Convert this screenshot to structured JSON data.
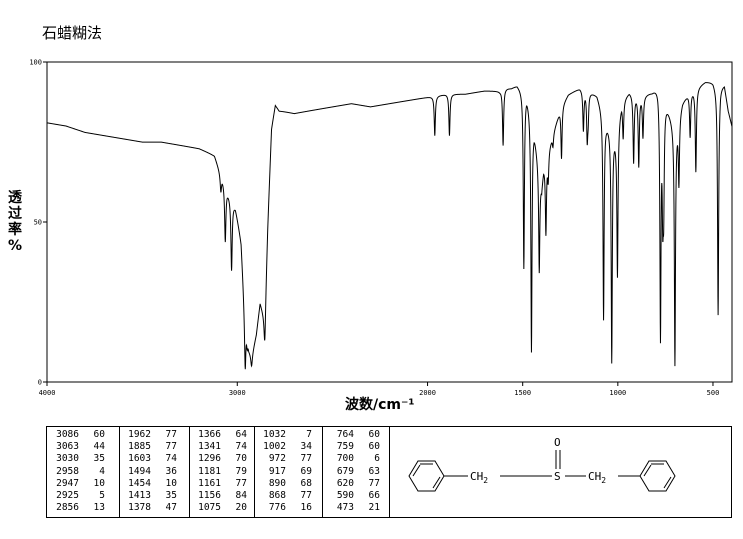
{
  "header": {
    "method": "石蜡糊法"
  },
  "chart_data": {
    "type": "line",
    "title": "",
    "xlabel": "波数/cm⁻¹",
    "ylabel": [
      "透",
      "过",
      "率",
      "%"
    ],
    "xlim": [
      4000,
      400
    ],
    "ylim": [
      0,
      100
    ],
    "x_ticks": [
      {
        "value": 4000,
        "label": "4000"
      },
      {
        "value": 3000,
        "label": "3000"
      },
      {
        "value": 2000,
        "label": "2000"
      },
      {
        "value": 1500,
        "label": "1500"
      },
      {
        "value": 1000,
        "label": "1000"
      },
      {
        "value": 500,
        "label": "500"
      }
    ],
    "y_ticks": [
      {
        "value": 0,
        "label": "0"
      },
      {
        "value": 50,
        "label": "50"
      },
      {
        "value": 100,
        "label": "100"
      }
    ],
    "grid": false,
    "baseline": [
      [
        4000,
        81
      ],
      [
        3900,
        80
      ],
      [
        3800,
        78
      ],
      [
        3700,
        77
      ],
      [
        3600,
        76
      ],
      [
        3500,
        75
      ],
      [
        3400,
        75
      ],
      [
        3300,
        74
      ],
      [
        3200,
        73
      ],
      [
        3120,
        71
      ],
      [
        3090,
        66
      ],
      [
        3050,
        60
      ],
      [
        3010,
        55
      ],
      [
        2980,
        45
      ],
      [
        2958,
        20
      ],
      [
        2940,
        10
      ],
      [
        2925,
        8
      ],
      [
        2900,
        15
      ],
      [
        2880,
        25
      ],
      [
        2856,
        20
      ],
      [
        2840,
        50
      ],
      [
        2820,
        80
      ],
      [
        2800,
        87
      ],
      [
        2780,
        85
      ],
      [
        2700,
        84
      ],
      [
        2600,
        85
      ],
      [
        2500,
        86
      ],
      [
        2400,
        87
      ],
      [
        2300,
        86
      ],
      [
        2200,
        87
      ],
      [
        2100,
        88
      ],
      [
        2000,
        89
      ],
      [
        1900,
        90
      ],
      [
        1800,
        90
      ],
      [
        1700,
        91
      ],
      [
        1620,
        91
      ],
      [
        1600,
        92
      ],
      [
        1560,
        92
      ],
      [
        1530,
        93
      ],
      [
        1510,
        92
      ],
      [
        1480,
        91
      ],
      [
        1440,
        80
      ],
      [
        1420,
        70
      ],
      [
        1400,
        62
      ],
      [
        1390,
        68
      ],
      [
        1370,
        72
      ],
      [
        1350,
        76
      ],
      [
        1300,
        86
      ],
      [
        1260,
        90
      ],
      [
        1200,
        92
      ],
      [
        1150,
        91
      ],
      [
        1110,
        90
      ],
      [
        1060,
        82
      ],
      [
        1010,
        78
      ],
      [
        980,
        88
      ],
      [
        940,
        91
      ],
      [
        900,
        90
      ],
      [
        860,
        90
      ],
      [
        820,
        91
      ],
      [
        790,
        93
      ],
      [
        760,
        90
      ],
      [
        700,
        80
      ],
      [
        660,
        88
      ],
      [
        620,
        91
      ],
      [
        590,
        92
      ],
      [
        540,
        94
      ],
      [
        500,
        94
      ],
      [
        480,
        92
      ],
      [
        473,
        88
      ],
      [
        460,
        93
      ],
      [
        440,
        93
      ],
      [
        420,
        85
      ],
      [
        400,
        80
      ]
    ],
    "peaks": [
      {
        "wavenumber": 3086,
        "transmittance": 60
      },
      {
        "wavenumber": 3063,
        "transmittance": 44
      },
      {
        "wavenumber": 3030,
        "transmittance": 35
      },
      {
        "wavenumber": 2958,
        "transmittance": 4
      },
      {
        "wavenumber": 2947,
        "transmittance": 10
      },
      {
        "wavenumber": 2925,
        "transmittance": 5
      },
      {
        "wavenumber": 2856,
        "transmittance": 13
      },
      {
        "wavenumber": 1962,
        "transmittance": 77
      },
      {
        "wavenumber": 1885,
        "transmittance": 77
      },
      {
        "wavenumber": 1603,
        "transmittance": 74
      },
      {
        "wavenumber": 1494,
        "transmittance": 36
      },
      {
        "wavenumber": 1454,
        "transmittance": 10
      },
      {
        "wavenumber": 1413,
        "transmittance": 35
      },
      {
        "wavenumber": 1378,
        "transmittance": 47
      },
      {
        "wavenumber": 1366,
        "transmittance": 64
      },
      {
        "wavenumber": 1341,
        "transmittance": 74
      },
      {
        "wavenumber": 1296,
        "transmittance": 70
      },
      {
        "wavenumber": 1181,
        "transmittance": 79
      },
      {
        "wavenumber": 1161,
        "transmittance": 77
      },
      {
        "wavenumber": 1156,
        "transmittance": 84
      },
      {
        "wavenumber": 1075,
        "transmittance": 20
      },
      {
        "wavenumber": 1032,
        "transmittance": 7
      },
      {
        "wavenumber": 1002,
        "transmittance": 34
      },
      {
        "wavenumber": 972,
        "transmittance": 77
      },
      {
        "wavenumber": 917,
        "transmittance": 69
      },
      {
        "wavenumber": 890,
        "transmittance": 68
      },
      {
        "wavenumber": 868,
        "transmittance": 77
      },
      {
        "wavenumber": 776,
        "transmittance": 16
      },
      {
        "wavenumber": 764,
        "transmittance": 60
      },
      {
        "wavenumber": 759,
        "transmittance": 60
      },
      {
        "wavenumber": 700,
        "transmittance": 6
      },
      {
        "wavenumber": 679,
        "transmittance": 63
      },
      {
        "wavenumber": 620,
        "transmittance": 77
      },
      {
        "wavenumber": 590,
        "transmittance": 66
      },
      {
        "wavenumber": 473,
        "transmittance": 21
      }
    ]
  },
  "peak_table": {
    "columns": [
      [
        [
          "3086",
          "60"
        ],
        [
          "3063",
          "44"
        ],
        [
          "3030",
          "35"
        ],
        [
          "2958",
          "4"
        ],
        [
          "2947",
          "10"
        ],
        [
          "2925",
          "5"
        ],
        [
          "2856",
          "13"
        ]
      ],
      [
        [
          "1962",
          "77"
        ],
        [
          "1885",
          "77"
        ],
        [
          "1603",
          "74"
        ],
        [
          "1494",
          "36"
        ],
        [
          "1454",
          "10"
        ],
        [
          "1413",
          "35"
        ],
        [
          "1378",
          "47"
        ]
      ],
      [
        [
          "1366",
          "64"
        ],
        [
          "1341",
          "74"
        ],
        [
          "1296",
          "70"
        ],
        [
          "1181",
          "79"
        ],
        [
          "1161",
          "77"
        ],
        [
          "1156",
          "84"
        ],
        [
          "1075",
          "20"
        ]
      ],
      [
        [
          "1032",
          "7"
        ],
        [
          "1002",
          "34"
        ],
        [
          "972",
          "77"
        ],
        [
          "917",
          "69"
        ],
        [
          "890",
          "68"
        ],
        [
          "868",
          "77"
        ],
        [
          "776",
          "16"
        ]
      ],
      [
        [
          "764",
          "60"
        ],
        [
          "759",
          "60"
        ],
        [
          "700",
          "6"
        ],
        [
          "679",
          "63"
        ],
        [
          "620",
          "77"
        ],
        [
          "590",
          "66"
        ],
        [
          "473",
          "21"
        ]
      ]
    ]
  },
  "structure": {
    "oxygen": "O",
    "sulfur": "S",
    "ch2_left": "CH",
    "ch2_left_sub": "2",
    "ch2_right": "CH",
    "ch2_right_sub": "2"
  }
}
